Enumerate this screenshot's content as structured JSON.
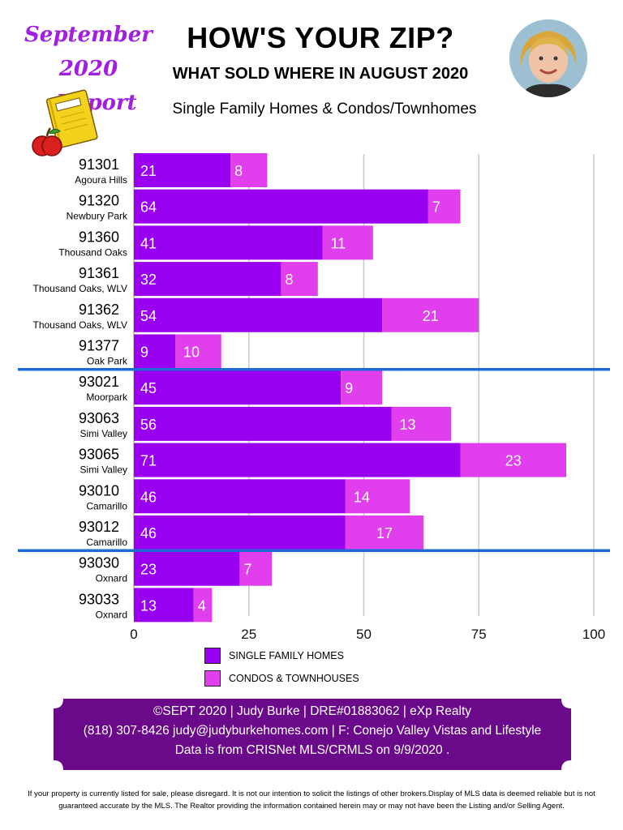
{
  "header": {
    "report_line1": "September 2020",
    "report_line2": "Report",
    "title": "HOW'S YOUR ZIP?",
    "subtitle": "WHAT SOLD WHERE IN AUGUST 2020",
    "types": "Single Family Homes & Condos/Townhomes"
  },
  "colors": {
    "sfh": "#9900ef",
    "condo": "#e13fee",
    "separator": "#1f6bd6",
    "grid": "#c8c8c8",
    "banner": "#6a0a8a",
    "report_title": "#a21ee0"
  },
  "icons": {
    "notebook": "notebook-apple-icon",
    "avatar": "agent-avatar"
  },
  "chart_data": {
    "type": "bar",
    "orientation": "horizontal",
    "stacked": true,
    "categories": [
      "91301",
      "91320",
      "91360",
      "91361",
      "91362",
      "91377",
      "93021",
      "93063",
      "93065",
      "93010",
      "93012",
      "93030",
      "93033"
    ],
    "category_sublabels": [
      "Agoura Hills",
      "Newbury Park",
      "Thousand Oaks",
      "Thousand Oaks, WLV",
      "Thousand Oaks, WLV",
      "Oak Park",
      "Moorpark",
      "Simi Valley",
      "Simi Valley",
      "Camarillo",
      "Camarillo",
      "Oxnard",
      "Oxnard"
    ],
    "series": [
      {
        "name": "SINGLE FAMILY HOMES",
        "values": [
          21,
          64,
          41,
          32,
          54,
          9,
          45,
          56,
          71,
          46,
          46,
          23,
          13
        ]
      },
      {
        "name": "CONDOS & TOWNHOUSES",
        "values": [
          8,
          7,
          11,
          8,
          21,
          10,
          9,
          13,
          23,
          14,
          17,
          7,
          4
        ]
      }
    ],
    "xlim": [
      0,
      100
    ],
    "xticks": [
      0,
      25,
      50,
      75,
      100
    ],
    "grid": true,
    "group_separators_after": [
      "91377",
      "93012"
    ],
    "legend_position": "bottom"
  },
  "footer": {
    "line1": "©SEPT 2020  |  Judy Burke  |  DRE#01883062  |  eXp Realty",
    "line2": "(818) 307-8426  judy@judyburkehomes.com | F: Conejo Valley Vistas and Lifestyle",
    "line3": "Data is from CRISNet MLS/CRMLS on 9/9/2020 ."
  },
  "disclaimer": "If your property is currently listed for sale, please disregard. It is not our intention to solicit the listings of other brokers.Display of MLS data is deemed reliable but is not guaranteed accurate by the MLS. The Realtor providing the information contained herein may or may not have been the Listing and/or Selling Agent."
}
